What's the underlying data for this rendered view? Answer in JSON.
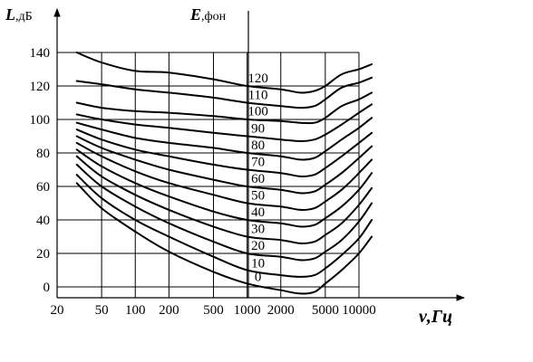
{
  "chart_data": {
    "type": "line",
    "title": "",
    "ylabel": {
      "main": "L",
      "unit": ",дБ"
    },
    "xlabel": {
      "main": "ν",
      "sep": ",",
      "unit": "Гц"
    },
    "curve_axis_label": {
      "main": "E",
      "unit": ",фон"
    },
    "x_scale": "log",
    "xlim": [
      20,
      20000
    ],
    "ylim": [
      -10,
      150
    ],
    "x_grid": [
      20,
      50,
      100,
      200,
      500,
      1000,
      2000,
      5000,
      10000
    ],
    "y_grid": [
      0,
      20,
      40,
      60,
      80,
      100,
      120,
      140
    ],
    "x_ticks": [
      {
        "value": 20,
        "label": "20"
      },
      {
        "value": 50,
        "label": "50"
      },
      {
        "value": 100,
        "label": "100"
      },
      {
        "value": 200,
        "label": "200"
      },
      {
        "value": 500,
        "label": "500"
      },
      {
        "value": 1000,
        "label": "1000"
      },
      {
        "value": 2000,
        "label": "2000"
      },
      {
        "value": 5000,
        "label": "5000"
      },
      {
        "value": 10000,
        "label": "10000"
      }
    ],
    "y_ticks": [
      {
        "value": 0,
        "label": "0"
      },
      {
        "value": 20,
        "label": "20"
      },
      {
        "value": 40,
        "label": "40"
      },
      {
        "value": 60,
        "label": "60"
      },
      {
        "value": 80,
        "label": "80"
      },
      {
        "value": 100,
        "label": "100"
      },
      {
        "value": 120,
        "label": "120"
      },
      {
        "value": 140,
        "label": "140"
      }
    ],
    "x": [
      30,
      50,
      100,
      200,
      500,
      1000,
      2000,
      3000,
      4000,
      5000,
      7000,
      10000,
      13000
    ],
    "series": [
      {
        "label": "120",
        "values": [
          140,
          134,
          129,
          128,
          124,
          120,
          118,
          116,
          117,
          120,
          127,
          130,
          133
        ]
      },
      {
        "label": "110",
        "values": [
          123,
          121,
          118,
          116,
          113,
          110,
          108,
          107,
          108,
          112,
          119,
          122,
          125
        ]
      },
      {
        "label": "100",
        "values": [
          110,
          107,
          105,
          104,
          102,
          100,
          99,
          98,
          98,
          101,
          108,
          112,
          116
        ]
      },
      {
        "label": "90",
        "values": [
          103,
          100,
          97,
          95,
          92,
          90,
          88,
          87,
          88,
          91,
          97,
          104,
          109
        ]
      },
      {
        "label": "80",
        "values": [
          98,
          94,
          89,
          86,
          83,
          80,
          78,
          76,
          77,
          81,
          88,
          95,
          101
        ]
      },
      {
        "label": "70",
        "values": [
          94,
          88,
          82,
          78,
          73,
          70,
          68,
          66,
          67,
          71,
          78,
          86,
          92
        ]
      },
      {
        "label": "60",
        "values": [
          90,
          83,
          76,
          70,
          64,
          60,
          58,
          56,
          57,
          61,
          68,
          77,
          84
        ]
      },
      {
        "label": "50",
        "values": [
          86,
          78,
          69,
          62,
          55,
          50,
          48,
          46,
          47,
          51,
          58,
          68,
          76
        ]
      },
      {
        "label": "40",
        "values": [
          82,
          72,
          62,
          54,
          45,
          40,
          38,
          36,
          37,
          41,
          48,
          58,
          68
        ]
      },
      {
        "label": "30",
        "values": [
          78,
          66,
          55,
          46,
          36,
          30,
          28,
          26,
          27,
          31,
          38,
          49,
          59
        ]
      },
      {
        "label": "20",
        "values": [
          73,
          60,
          48,
          38,
          27,
          20,
          18,
          16,
          17,
          21,
          28,
          39,
          50
        ]
      },
      {
        "label": "10",
        "values": [
          67,
          53,
          40,
          30,
          18,
          10,
          7,
          6,
          7,
          11,
          19,
          29,
          40
        ]
      },
      {
        "label": "0",
        "values": [
          62,
          47,
          33,
          21,
          9,
          2,
          -2,
          -4,
          -3,
          2,
          10,
          20,
          30
        ]
      }
    ]
  }
}
